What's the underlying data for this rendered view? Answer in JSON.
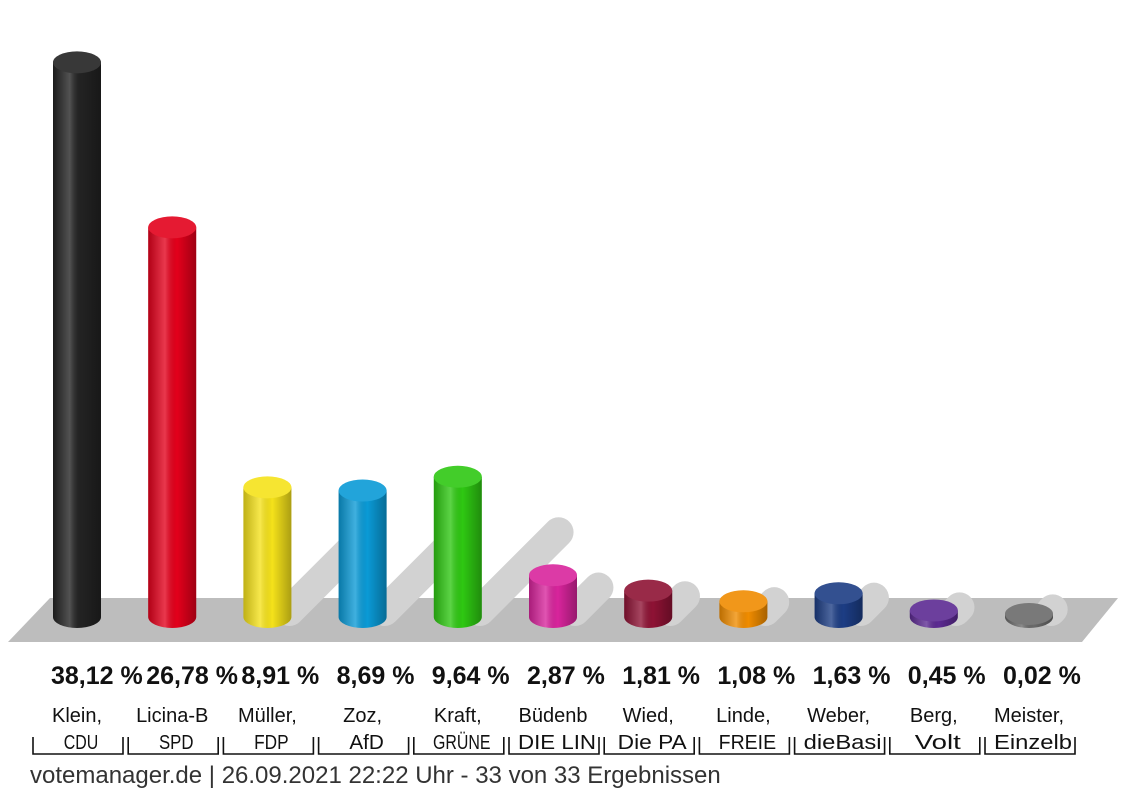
{
  "chart_data": {
    "type": "bar",
    "unit": "%",
    "ylim": [
      0,
      40
    ],
    "categories": [
      {
        "candidate": "Klein,",
        "party": "CDU",
        "value": 38.12,
        "label": "38,12 %",
        "color": "#222222"
      },
      {
        "candidate": "Licina-B",
        "party": "SPD",
        "value": 26.78,
        "label": "26,78 %",
        "color": "#e3001b"
      },
      {
        "candidate": "Müller,",
        "party": "FDP",
        "value": 8.91,
        "label": "8,91 %",
        "color": "#f5e21a"
      },
      {
        "candidate": "Zoz,",
        "party": "AfD",
        "value": 8.69,
        "label": "8,69 %",
        "color": "#0a9ad6"
      },
      {
        "candidate": "Kraft,",
        "party": "GRÜNE",
        "value": 9.64,
        "label": "9,64 %",
        "color": "#2ec812"
      },
      {
        "candidate": "Büdenb",
        "party": "DIE LIN",
        "value": 2.87,
        "label": "2,87 %",
        "color": "#d8249c"
      },
      {
        "candidate": "Wied,",
        "party": "Die PA",
        "value": 1.81,
        "label": "1,81 %",
        "color": "#8e1234"
      },
      {
        "candidate": "Linde,",
        "party": "FREIE",
        "value": 1.08,
        "label": "1,08 %",
        "color": "#f08c00"
      },
      {
        "candidate": "Weber,",
        "party": "dieBasi",
        "value": 1.63,
        "label": "1,63 %",
        "color": "#1c3d84"
      },
      {
        "candidate": "Berg,",
        "party": "Volt",
        "value": 0.45,
        "label": "0,45 %",
        "color": "#5c2a92"
      },
      {
        "candidate": "Meister,",
        "party": "Einzelb",
        "value": 0.02,
        "label": "0,02 %",
        "color": "#6a6a6a"
      }
    ]
  },
  "footer": "votemanager.de | 26.09.2021 22:22 Uhr - 33 von 33 Ergebnissen"
}
